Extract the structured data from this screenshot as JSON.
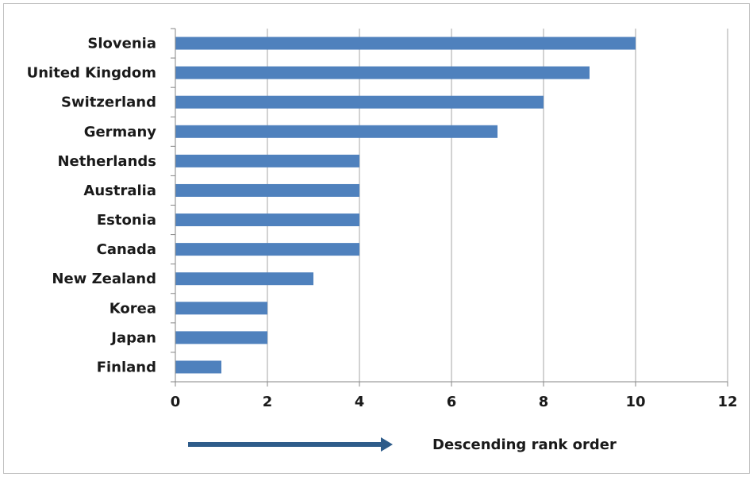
{
  "chart_data": {
    "type": "bar",
    "orientation": "horizontal",
    "categories": [
      "Slovenia",
      "United Kingdom",
      "Switzerland",
      "Germany",
      "Netherlands",
      "Australia",
      "Estonia",
      "Canada",
      "New Zealand",
      "Korea",
      "Japan",
      "Finland"
    ],
    "values": [
      10,
      9,
      8,
      7,
      4,
      4,
      4,
      4,
      3,
      2,
      2,
      1
    ],
    "xlim": [
      0,
      12
    ],
    "xticks": [
      0,
      2,
      4,
      6,
      8,
      10,
      12
    ],
    "grid": true,
    "bar_color": "#4f81bd",
    "annotation": {
      "label": "Descending rank order",
      "arrow_color": "#2e5c8a"
    }
  }
}
